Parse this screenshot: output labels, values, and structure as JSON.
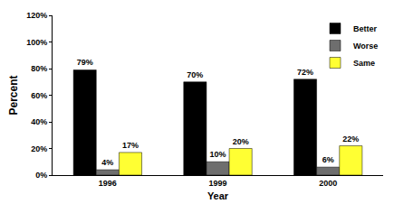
{
  "chart_data": {
    "type": "bar",
    "x_label": "Year",
    "y_label": "Percent",
    "categories": [
      "1996",
      "1999",
      "2000"
    ],
    "series": [
      {
        "name": "Better",
        "color": "#000000",
        "values": [
          79,
          70,
          72
        ],
        "value_labels": [
          "79%",
          "70%",
          "72%"
        ]
      },
      {
        "name": "Worse",
        "color": "#6e6e6e",
        "values": [
          4,
          10,
          6
        ],
        "value_labels": [
          "4%",
          "10%",
          "6%"
        ]
      },
      {
        "name": "Same",
        "color": "#ffff33",
        "values": [
          17,
          20,
          22
        ],
        "value_labels": [
          "17%",
          "20%",
          "22%"
        ]
      }
    ],
    "ylim": [
      0,
      120
    ],
    "yticks": [
      {
        "value": 0,
        "label": "0%"
      },
      {
        "value": 20,
        "label": "20%"
      },
      {
        "value": 40,
        "label": "40%"
      },
      {
        "value": 60,
        "label": "60%"
      },
      {
        "value": 80,
        "label": "80%"
      },
      {
        "value": 100,
        "label": "100%"
      },
      {
        "value": 120,
        "label": "120%"
      }
    ],
    "grid": false,
    "legend": "upper right",
    "data_labels": true
  }
}
